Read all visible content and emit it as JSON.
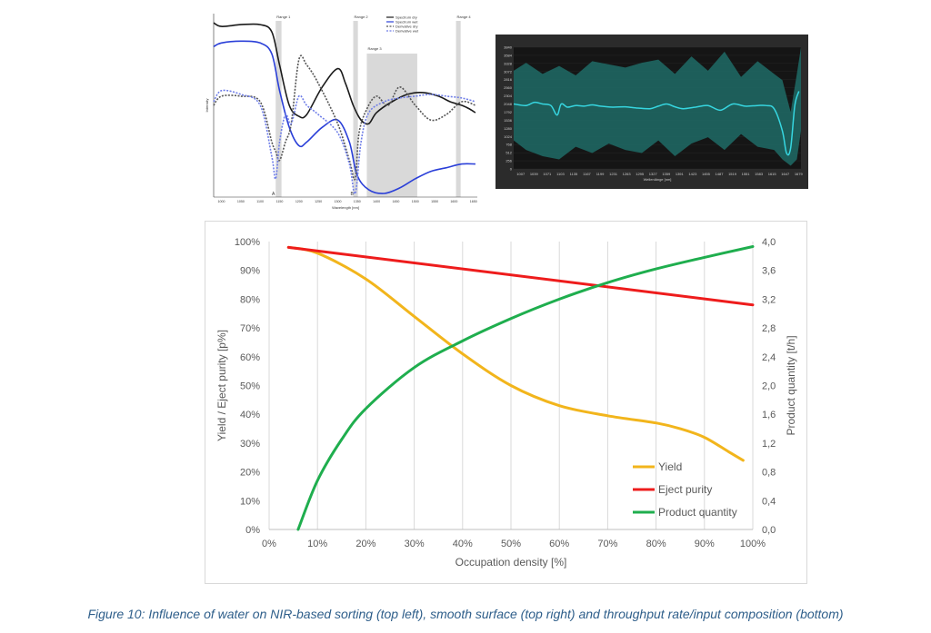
{
  "caption": "Figure 10: Influence of water on NIR-based sorting (top left), smooth surface (top right) and throughput rate/input composition (bottom)",
  "chart_data": [
    {
      "id": "top-left",
      "type": "line",
      "xlabel": "Wavelength [nm]",
      "ylabel": "Intensity",
      "xlim": [
        980,
        1660
      ],
      "xticks": [
        1000,
        1050,
        1100,
        1150,
        1200,
        1250,
        1300,
        1350,
        1400,
        1450,
        1500,
        1550,
        1600,
        1650
      ],
      "ranges": [
        {
          "label": "Range 1",
          "x0": 1140,
          "x1": 1155
        },
        {
          "label": "Range 2",
          "x0": 1340,
          "x1": 1352
        },
        {
          "label": "Range 3",
          "x0": 1375,
          "x1": 1505
        },
        {
          "label": "Range 4",
          "x0": 1605,
          "x1": 1617
        }
      ],
      "markers": [
        {
          "label": "A",
          "x": 1130
        },
        {
          "label": "B",
          "x": 1333
        }
      ],
      "series": [
        {
          "name": "Spectrum dry",
          "color": "#1a1a1a",
          "dash": "none",
          "x": [
            980,
            1000,
            1050,
            1100,
            1130,
            1150,
            1175,
            1200,
            1220,
            1260,
            1300,
            1320,
            1340,
            1360,
            1380,
            1400,
            1440,
            1480,
            1520,
            1560,
            1590,
            1620,
            1640,
            1655
          ],
          "y": [
            0.95,
            0.93,
            0.94,
            0.94,
            0.9,
            0.72,
            0.5,
            0.44,
            0.45,
            0.6,
            0.7,
            0.62,
            0.5,
            0.42,
            0.4,
            0.46,
            0.52,
            0.56,
            0.57,
            0.55,
            0.52,
            0.5,
            0.48,
            0.46
          ]
        },
        {
          "name": "Spectrum wet",
          "color": "#2a3fd8",
          "dash": "none",
          "x": [
            980,
            1000,
            1050,
            1100,
            1130,
            1150,
            1175,
            1200,
            1220,
            1260,
            1300,
            1330,
            1350,
            1380,
            1420,
            1460,
            1500,
            1540,
            1580,
            1620,
            1655
          ],
          "y": [
            0.82,
            0.84,
            0.85,
            0.84,
            0.78,
            0.58,
            0.38,
            0.28,
            0.3,
            0.38,
            0.42,
            0.3,
            0.12,
            0.04,
            0.02,
            0.05,
            0.1,
            0.14,
            0.16,
            0.18,
            0.18
          ]
        },
        {
          "name": "Derivative dry",
          "color": "#555555",
          "dash": "2,1.5",
          "x": [
            980,
            1000,
            1050,
            1100,
            1130,
            1140,
            1150,
            1165,
            1180,
            1200,
            1220,
            1250,
            1300,
            1330,
            1345,
            1355,
            1375,
            1400,
            1430,
            1460,
            1500,
            1540,
            1580,
            1620,
            1655
          ],
          "y": [
            0.5,
            0.55,
            0.55,
            0.52,
            0.3,
            0.25,
            0.2,
            0.3,
            0.4,
            0.75,
            0.72,
            0.62,
            0.4,
            0.2,
            0.1,
            0.35,
            0.48,
            0.55,
            0.5,
            0.6,
            0.5,
            0.42,
            0.45,
            0.52,
            0.5
          ]
        },
        {
          "name": "Derivative wet",
          "color": "#6f7ee8",
          "dash": "2,1.5",
          "x": [
            980,
            1000,
            1050,
            1100,
            1130,
            1140,
            1150,
            1165,
            1180,
            1200,
            1220,
            1250,
            1300,
            1330,
            1345,
            1360,
            1380,
            1420,
            1460,
            1500,
            1540,
            1580,
            1620,
            1655
          ],
          "y": [
            0.52,
            0.58,
            0.56,
            0.5,
            0.22,
            0.1,
            0.3,
            0.45,
            0.4,
            0.55,
            0.5,
            0.45,
            0.35,
            0.18,
            0.02,
            0.3,
            0.46,
            0.52,
            0.54,
            0.55,
            0.56,
            0.55,
            0.54,
            0.52
          ]
        }
      ]
    },
    {
      "id": "top-right",
      "type": "area",
      "xlabel": "Wellenlänge [nm]",
      "xticks": [
        1007,
        1039,
        1071,
        1103,
        1135,
        1167,
        1199,
        1231,
        1263,
        1295,
        1327,
        1359,
        1391,
        1423,
        1455,
        1487,
        1519,
        1551,
        1583,
        1615,
        1647,
        1679
      ],
      "yticks": [
        0,
        256,
        512,
        768,
        1024,
        1280,
        1536,
        1792,
        2048,
        2304,
        2560,
        2816,
        3072,
        3328,
        3584,
        3840
      ],
      "ylim": [
        0,
        3840
      ],
      "xlim": [
        990,
        1685
      ],
      "mean": {
        "x": [
          990,
          1020,
          1040,
          1060,
          1080,
          1095,
          1105,
          1120,
          1140,
          1160,
          1180,
          1200,
          1230,
          1260,
          1290,
          1320,
          1340,
          1360,
          1380,
          1400,
          1430,
          1460,
          1490,
          1520,
          1550,
          1580,
          1600,
          1620,
          1640,
          1650,
          1660,
          1670,
          1680
        ],
        "y": [
          2050,
          2000,
          2100,
          2050,
          2000,
          1700,
          2050,
          1950,
          2000,
          1980,
          2020,
          1980,
          1950,
          1960,
          1920,
          1900,
          1980,
          2050,
          1960,
          1900,
          1950,
          2000,
          1850,
          2050,
          1980,
          2000,
          2000,
          1900,
          1200,
          500,
          650,
          2000,
          2450
        ]
      },
      "band": {
        "x": [
          990,
          1020,
          1060,
          1100,
          1140,
          1180,
          1220,
          1260,
          1300,
          1340,
          1380,
          1420,
          1460,
          1500,
          1540,
          1580,
          1620,
          1640,
          1660,
          1675,
          1685
        ],
        "upper": [
          3100,
          3350,
          3000,
          3250,
          2950,
          3400,
          3300,
          3200,
          3350,
          3450,
          3000,
          3550,
          3100,
          3700,
          2900,
          3400,
          3000,
          2800,
          1800,
          3000,
          3840
        ],
        "lower": [
          900,
          600,
          400,
          300,
          700,
          500,
          800,
          600,
          500,
          900,
          400,
          800,
          1000,
          600,
          1100,
          700,
          600,
          300,
          100,
          300,
          1200
        ]
      },
      "colors": {
        "bg": "#2b2b2b",
        "plot": "#151515",
        "band": "#1f6b66",
        "mean": "#36d6e0"
      }
    },
    {
      "id": "bottom",
      "type": "line",
      "xlabel": "Occupation density [%]",
      "ylabel": "Yield / Eject purity [p%]",
      "y2label": "Product quantity [t/h]",
      "xlim": [
        0,
        100
      ],
      "ylim": [
        0,
        100
      ],
      "y2lim": [
        0,
        4.0
      ],
      "xticks": [
        "0%",
        "10%",
        "20%",
        "30%",
        "40%",
        "50%",
        "60%",
        "70%",
        "80%",
        "90%",
        "100%"
      ],
      "yticks": [
        "0%",
        "10%",
        "20%",
        "30%",
        "40%",
        "50%",
        "60%",
        "70%",
        "80%",
        "90%",
        "100%"
      ],
      "y2ticks": [
        "0,0",
        "0,4",
        "0,8",
        "1,2",
        "1,6",
        "2,0",
        "2,4",
        "2,8",
        "3,2",
        "3,6",
        "4,0"
      ],
      "grid": "vertical",
      "legend": "bottom-right",
      "series": [
        {
          "name": "Yield",
          "color": "#f2b51c",
          "axis": "left",
          "x": [
            4,
            10,
            20,
            30,
            40,
            50,
            60,
            70,
            80,
            85,
            90,
            95,
            98
          ],
          "y": [
            98,
            96,
            87,
            74,
            61,
            50,
            43,
            39.5,
            37,
            35,
            32,
            27,
            24
          ]
        },
        {
          "name": "Eject purity",
          "color": "#ee1c1c",
          "axis": "left",
          "x": [
            4,
            100
          ],
          "y": [
            98,
            78
          ]
        },
        {
          "name": "Product quantity",
          "color": "#1fae4e",
          "axis": "right",
          "x": [
            6,
            10,
            15,
            20,
            30,
            40,
            50,
            60,
            70,
            80,
            90,
            100
          ],
          "y": [
            0.0,
            0.68,
            1.25,
            1.68,
            2.25,
            2.62,
            2.93,
            3.2,
            3.43,
            3.62,
            3.78,
            3.93
          ]
        }
      ]
    }
  ]
}
